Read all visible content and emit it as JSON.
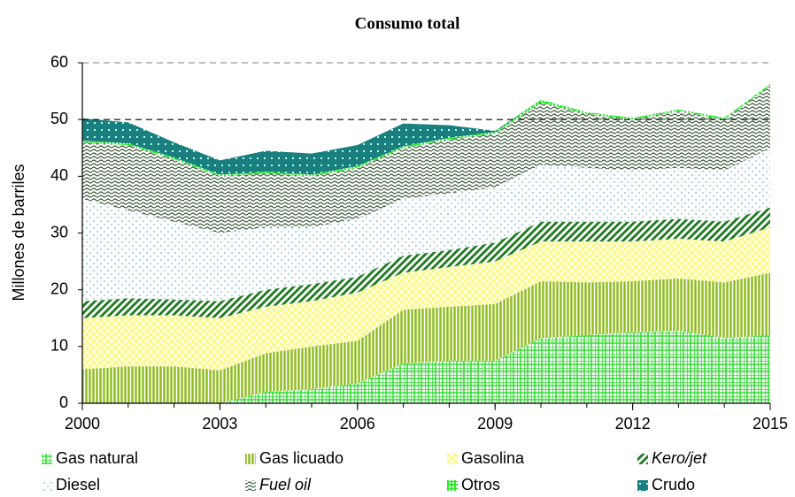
{
  "chart_data": {
    "type": "stacked_area",
    "title": "Consumo total",
    "y_label": "Millones de barriles",
    "x": [
      2000,
      2001,
      2002,
      2003,
      2004,
      2005,
      2006,
      2007,
      2008,
      2009,
      2010,
      2011,
      2012,
      2013,
      2014,
      2015
    ],
    "xlim": [
      2000,
      2015
    ],
    "xticks": [
      2000,
      2003,
      2006,
      2009,
      2012,
      2015
    ],
    "ylim": [
      0,
      60
    ],
    "yticks": [
      0,
      10,
      20,
      30,
      40,
      50,
      60
    ],
    "dashed_gridlines": [
      50,
      60
    ],
    "series": [
      {
        "name": "Gas natural",
        "color": "#33dd33",
        "values": [
          0,
          0,
          0,
          0,
          2,
          2.5,
          3.5,
          7,
          7.5,
          7.5,
          11.5,
          12,
          12.5,
          12.8,
          11.5,
          12
        ]
      },
      {
        "name": "Gas licuado",
        "color": "#8dbb1a",
        "values": [
          6,
          6.5,
          6.5,
          5.8,
          6.8,
          7.5,
          7.5,
          9.5,
          9.5,
          10,
          10,
          9.3,
          9,
          9.2,
          9.8,
          11
        ]
      },
      {
        "name": "Gasolina",
        "color": "#fafa88",
        "values": [
          9,
          9,
          9,
          9.2,
          8.2,
          8,
          8.5,
          6.5,
          7,
          7.5,
          7,
          7.2,
          7,
          7,
          7.2,
          8
        ]
      },
      {
        "name": "Kero/jet",
        "color": "#1e7a1e",
        "values": [
          3,
          3,
          2.8,
          3,
          3,
          3,
          2.8,
          3,
          3,
          3.3,
          3.5,
          3.5,
          3.5,
          3.5,
          3.5,
          3.5
        ]
      },
      {
        "name": "Diesel",
        "color": "#7ab8d8",
        "values": [
          18,
          15.5,
          13.7,
          12,
          11,
          10,
          10.2,
          10,
          10,
          9.7,
          10,
          9.5,
          9,
          9,
          9,
          10.5
        ]
      },
      {
        "name": "Fuel oil",
        "color": "#2f4f2f",
        "values": [
          10,
          11.5,
          11,
          10,
          9.5,
          9,
          9,
          9,
          9.5,
          9.5,
          11,
          9.5,
          9,
          10,
          9,
          11
        ]
      },
      {
        "name": "Otros",
        "color": "#22ee22",
        "values": [
          0.3,
          0.3,
          0.3,
          0.3,
          0.3,
          0.3,
          0.3,
          0.3,
          0.3,
          0.3,
          0.5,
          0.3,
          0.3,
          0.3,
          0.3,
          0.3
        ]
      },
      {
        "name": "Crudo",
        "color": "#1a7f7f",
        "values": [
          3.9,
          3.7,
          2.7,
          2.5,
          3.7,
          3.7,
          3.7,
          4,
          2.2,
          0.2,
          0,
          0,
          0,
          0,
          0,
          0
        ]
      }
    ]
  }
}
